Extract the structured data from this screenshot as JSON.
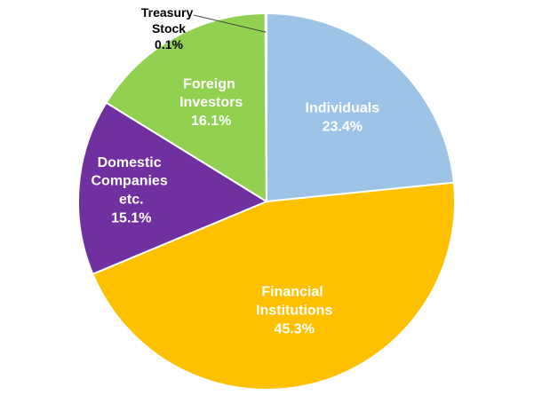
{
  "chart_data": {
    "type": "pie",
    "categories": [
      "Individuals",
      "Financial Institutions",
      "Domestic Companies etc.",
      "Foreign Investors",
      "Treasury Stock"
    ],
    "values": [
      23.4,
      45.3,
      15.1,
      16.1,
      0.1
    ],
    "value_labels": [
      "23.4%",
      "45.3%",
      "15.1%",
      "16.1%",
      "0.1%"
    ],
    "colors": [
      "#9dc3e6",
      "#ffc000",
      "#7030a0",
      "#92d050",
      "#a5a5a5"
    ]
  }
}
